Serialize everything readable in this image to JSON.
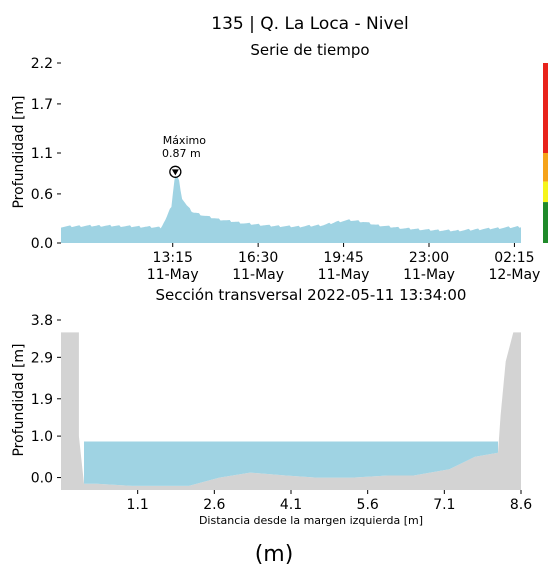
{
  "figure": {
    "title": "135 | Q. La Loca - Nivel",
    "caption": "(m)"
  },
  "colors": {
    "water": "#9fd3e3",
    "terrain": "#d3d3d3",
    "alert_red": "#e8231c",
    "alert_orange": "#f5a31a",
    "alert_yellow": "#f5f51c",
    "alert_green": "#1f8a2a"
  },
  "chart_data": [
    {
      "type": "area",
      "title": "Serie de tiempo",
      "xlabel": "",
      "ylabel": "Profundidad [m]",
      "ylim": [
        0,
        2.2
      ],
      "yticks": [
        "0.0",
        "0.6",
        "1.1",
        "1.7",
        "2.2"
      ],
      "ytick_values": [
        0,
        0.6,
        1.1,
        1.7,
        2.2
      ],
      "xlim": [
        9.0,
        26.5
      ],
      "xticks": [
        {
          "value": 13.25,
          "time": "13:15",
          "date": "11-May"
        },
        {
          "value": 16.5,
          "time": "16:30",
          "date": "11-May"
        },
        {
          "value": 19.75,
          "time": "19:45",
          "date": "11-May"
        },
        {
          "value": 23.0,
          "time": "23:00",
          "date": "11-May"
        },
        {
          "value": 26.25,
          "time": "02:15",
          "date": "12-May"
        }
      ],
      "x_units": "hours from 11-May 00:00",
      "x": [
        9.0,
        10.0,
        11.0,
        12.0,
        12.8,
        13.0,
        13.2,
        13.35,
        13.5,
        13.6,
        13.8,
        14.0,
        14.5,
        15.0,
        16.0,
        17.0,
        18.0,
        19.0,
        19.5,
        20.0,
        20.5,
        21.0,
        22.0,
        23.0,
        24.0,
        25.0,
        26.5
      ],
      "values": [
        0.2,
        0.21,
        0.21,
        0.2,
        0.19,
        0.3,
        0.45,
        0.87,
        0.75,
        0.55,
        0.45,
        0.38,
        0.33,
        0.29,
        0.24,
        0.21,
        0.2,
        0.22,
        0.26,
        0.28,
        0.26,
        0.22,
        0.18,
        0.16,
        0.15,
        0.17,
        0.2
      ],
      "annotation": {
        "label": "Máximo",
        "value_text": "0.87 m",
        "x": 13.35,
        "y": 0.87
      },
      "alert_bar": {
        "levels": [
          {
            "color": "red",
            "from": 1.1,
            "to": 2.2
          },
          {
            "color": "orange",
            "from": 0.75,
            "to": 1.1
          },
          {
            "color": "yellow",
            "from": 0.5,
            "to": 0.75
          },
          {
            "color": "green",
            "from": 0.0,
            "to": 0.5
          }
        ]
      }
    },
    {
      "type": "area",
      "title": "Sección transversal 2022-05-11 13:34:00",
      "xlabel": "Distancia desde la margen izquierda [m]",
      "ylabel": "Profundidad [m]",
      "xlim": [
        -0.4,
        8.6
      ],
      "ylim": [
        -0.3,
        3.8
      ],
      "xticks": [
        "1.1",
        "2.6",
        "4.1",
        "5.6",
        "7.1",
        "8.6"
      ],
      "xtick_values": [
        1.1,
        2.6,
        4.1,
        5.6,
        7.1,
        8.6
      ],
      "yticks": [
        "0.0",
        "1.0",
        "1.9",
        "2.9",
        "3.8"
      ],
      "ytick_values": [
        0.0,
        1.0,
        1.9,
        2.9,
        3.8
      ],
      "water_level": 0.87,
      "terrain_x": [
        -0.4,
        -0.05,
        -0.05,
        0.05,
        0.3,
        1.0,
        1.6,
        2.1,
        2.7,
        3.3,
        4.0,
        4.6,
        5.3,
        6.0,
        6.5,
        7.2,
        7.7,
        8.15,
        8.2,
        8.3,
        8.45,
        8.6
      ],
      "terrain_y": [
        3.5,
        3.5,
        1.0,
        -0.15,
        -0.15,
        -0.2,
        -0.2,
        -0.2,
        0.0,
        0.12,
        0.05,
        0.0,
        0.0,
        0.05,
        0.05,
        0.2,
        0.5,
        0.6,
        1.5,
        2.8,
        3.5,
        3.5
      ]
    }
  ]
}
